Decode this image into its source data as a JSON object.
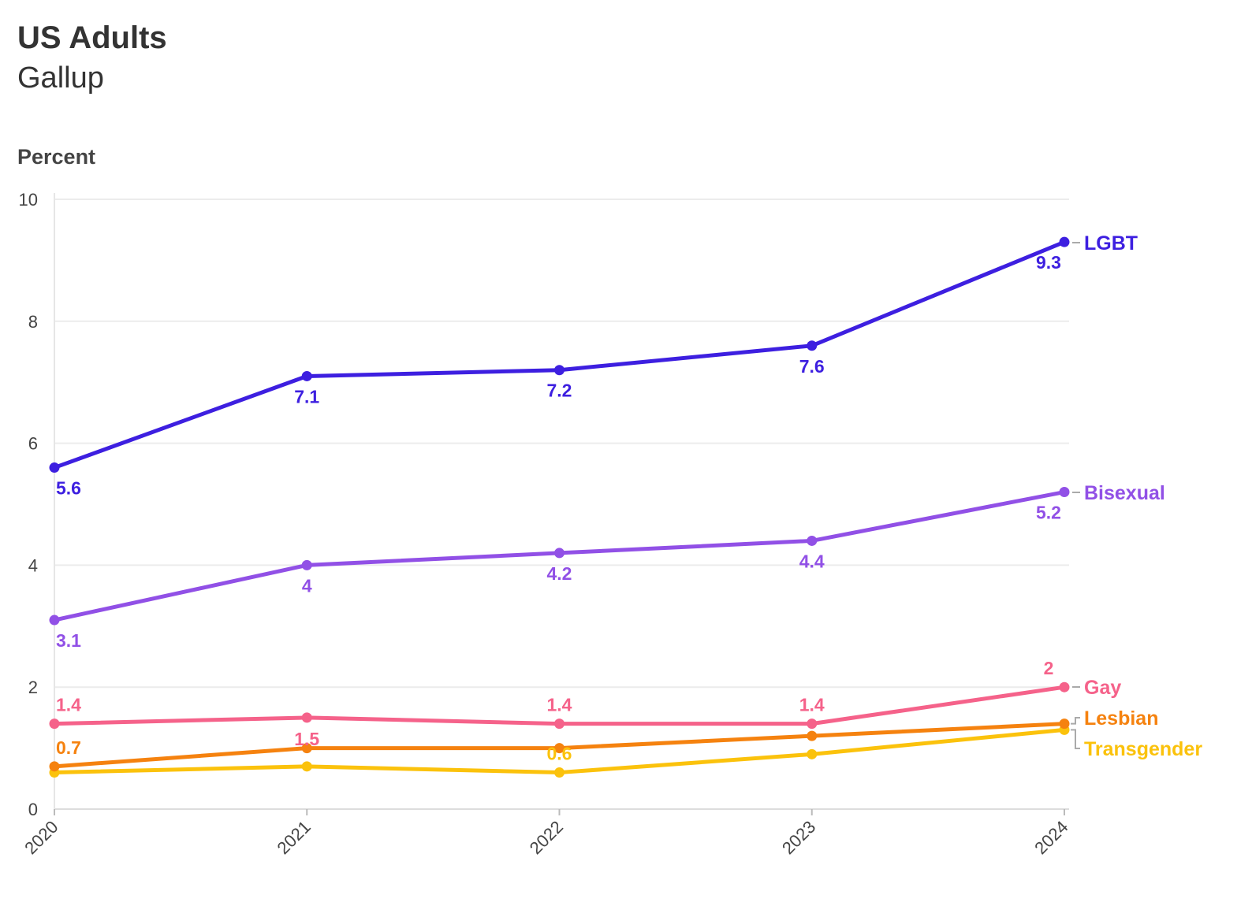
{
  "chart_data": {
    "type": "line",
    "title": "US Adults",
    "subtitle": "Gallup",
    "ylabel": "Percent",
    "xlabel": "",
    "x": [
      "2020",
      "2021",
      "2022",
      "2023",
      "2024"
    ],
    "ylim": [
      0,
      10
    ],
    "yticks": [
      0,
      2,
      4,
      6,
      8,
      10
    ],
    "grid": true,
    "legend": "labels at line ends (right)",
    "series": [
      {
        "name": "LGBT",
        "color": "#3d1fe0",
        "values": [
          5.6,
          7.1,
          7.2,
          7.6,
          9.3
        ],
        "labels": [
          "5.6",
          "7.1",
          "7.2",
          "7.6",
          "9.3"
        ]
      },
      {
        "name": "Bisexual",
        "color": "#9150e6",
        "values": [
          3.1,
          4.0,
          4.2,
          4.4,
          5.2
        ],
        "labels": [
          "3.1",
          "4",
          "4.2",
          "4.4",
          "5.2"
        ]
      },
      {
        "name": "Gay",
        "color": "#f5628a",
        "values": [
          1.4,
          1.5,
          1.4,
          1.4,
          2.0
        ],
        "labels": [
          "1.4",
          "1.5",
          "1.4",
          "1.4",
          "2"
        ]
      },
      {
        "name": "Lesbian",
        "color": "#f5820f",
        "values": [
          0.7,
          1.0,
          1.0,
          1.2,
          1.4
        ],
        "labels": [
          "0.7",
          "",
          "",
          "",
          ""
        ]
      },
      {
        "name": "Transgender",
        "color": "#fbc20c",
        "values": [
          0.6,
          0.7,
          0.6,
          0.9,
          1.3
        ],
        "labels": [
          "",
          "",
          "0.6",
          "",
          ""
        ]
      }
    ]
  }
}
